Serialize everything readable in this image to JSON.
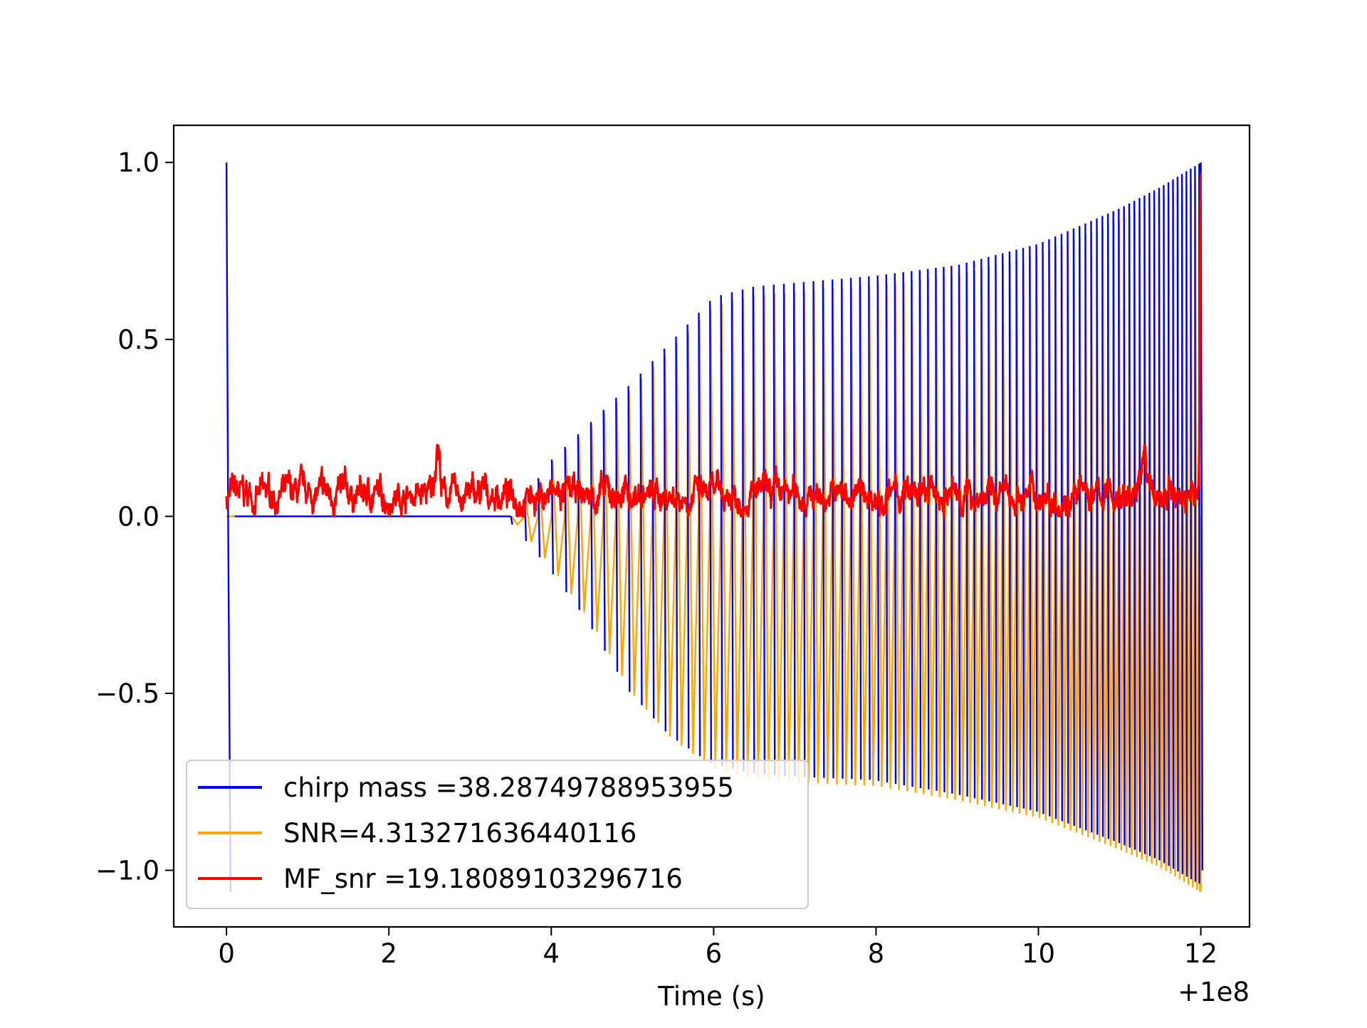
{
  "chart_data": {
    "type": "line",
    "title": "",
    "xlabel": "Time (s)",
    "ylabel": "",
    "x_offset_text": "+1e8",
    "xlim": [
      -0.65,
      12.6
    ],
    "ylim": [
      -1.16,
      1.105
    ],
    "xticks": [
      0,
      2,
      4,
      6,
      8,
      10,
      12
    ],
    "xtick_labels": [
      "0",
      "2",
      "4",
      "6",
      "8",
      "10",
      "12"
    ],
    "yticks": [
      -1.0,
      -0.5,
      0.0,
      0.5,
      1.0
    ],
    "ytick_labels": [
      "−1.0",
      "−0.5",
      "0.0",
      "0.5",
      "1.0"
    ],
    "grid": false,
    "legend_position": "lower-left",
    "series": [
      {
        "name": "chirp mass =38.28749788953955",
        "color": "#0000ff",
        "description_points": {
          "spike": {
            "x": [
              0.0,
              0.02,
              0.05
            ],
            "y": [
              1.0,
              0.0,
              -1.06
            ]
          },
          "envelope_x": [
            3.5,
            4.0,
            4.5,
            5.0,
            5.5,
            6.0,
            6.5,
            7.0,
            8.0,
            9.0,
            10.0,
            11.0,
            11.5,
            12.0
          ],
          "envelope_y": [
            0.0,
            0.16,
            0.27,
            0.38,
            0.5,
            0.62,
            0.65,
            0.66,
            0.68,
            0.71,
            0.77,
            0.87,
            0.93,
            1.0
          ]
        }
      },
      {
        "name": "SNR=4.313271636440116",
        "color": "#ffa500",
        "description_points": {
          "envelope_x": [
            0.0,
            3.5,
            4.0,
            4.5,
            5.0,
            5.5,
            6.0,
            6.5,
            7.0,
            8.0,
            9.0,
            10.0,
            11.0,
            11.5,
            12.0
          ],
          "envelope_y": [
            0.0,
            0.0,
            -0.14,
            -0.3,
            -0.5,
            -0.63,
            -0.71,
            -0.74,
            -0.75,
            -0.76,
            -0.8,
            -0.85,
            -0.94,
            -0.99,
            -1.06
          ]
        }
      },
      {
        "name": "MF_snr =19.18089103296716",
        "color": "#ff0000",
        "description_points": {
          "x_range": [
            0.0,
            12.0
          ],
          "baseline_y": 0.06,
          "peaks": [
            {
              "x": 2.6,
              "y": 0.23
            },
            {
              "x": 11.3,
              "y": 0.23
            },
            {
              "x": 12.0,
              "y": 1.0
            }
          ]
        }
      }
    ]
  }
}
